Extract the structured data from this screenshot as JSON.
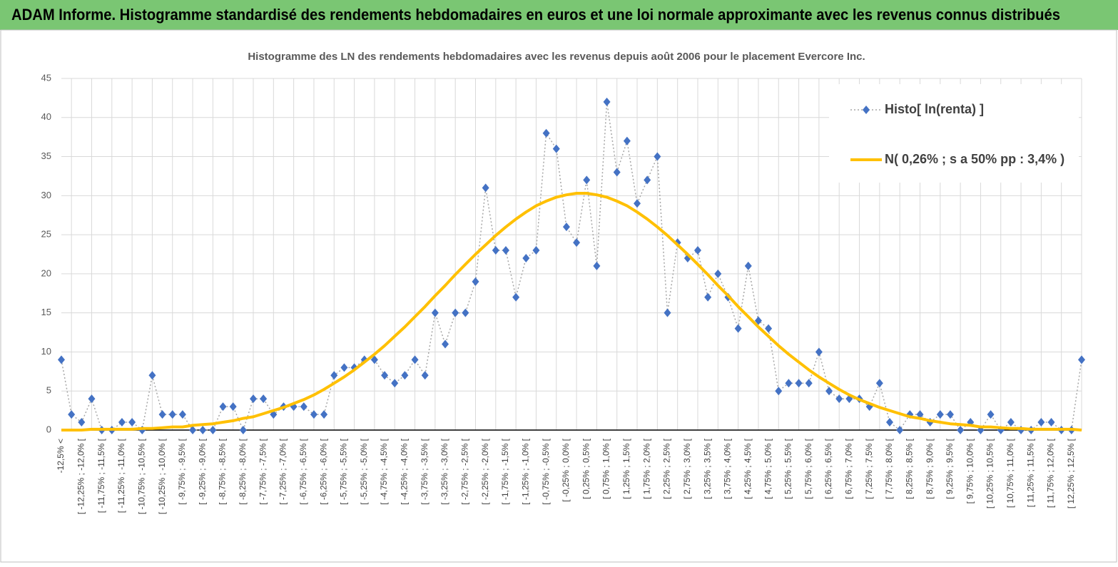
{
  "header": {
    "title": "ADAM Informe. Histogramme standardisé des rendements hebdomadaires en euros et une loi normale approximante avec les revenus connus distribués"
  },
  "chart_data": {
    "type": "line",
    "title": "Histogramme des LN des rendements hebdomadaires avec les revenus depuis août 2006 pour le placement Evercore Inc.",
    "categories": [
      "-12,5% <",
      null,
      "[ -12,25% ; -12,0% [",
      null,
      "[ -11,75% ; -11,5% [",
      null,
      "[ -11,25% ; -11,0% [",
      null,
      "[ -10,75% ; -10,5% [",
      null,
      "[ -10,25% ; -10,0% [",
      null,
      "[ -9,75% ; -9,5% [",
      null,
      "[ -9,25% ; -9,0% [",
      null,
      "[ -8,75% ; -8,5% [",
      null,
      "[ -8,25% ; -8,0% [",
      null,
      "[ -7,75% ; -7,5% [",
      null,
      "[ -7,25% ; -7,0% [",
      null,
      "[ -6,75% ; -6,5% [",
      null,
      "[ -6,25% ; -6,0% [",
      null,
      "[ -5,75% ; -5,5% [",
      null,
      "[ -5,25% ; -5,0% [",
      null,
      "[ -4,75% ; -4,5% [",
      null,
      "[ -4,25% ; -4,0% [",
      null,
      "[ -3,75% ; -3,5% [",
      null,
      "[ -3,25% ; -3,0% [",
      null,
      "[ -2,75% ; -2,5% [",
      null,
      "[ -2,25% ; -2,0% [",
      null,
      "[ -1,75% ; -1,5% [",
      null,
      "[ -1,25% ; -1,0% [",
      null,
      "[ -0,75% ; -0,5% [",
      null,
      "[ -0,25% ; 0,0% [",
      null,
      "[ 0,25% ; 0,5% [",
      null,
      "[ 0,75% ; 1,0% [",
      null,
      "[ 1,25% ; 1,5% [",
      null,
      "[ 1,75% ; 2,0% [",
      null,
      "[ 2,25% ; 2,5% [",
      null,
      "[ 2,75% ; 3,0% [",
      null,
      "[ 3,25% ; 3,5% [",
      null,
      "[ 3,75% ; 4,0% [",
      null,
      "[ 4,25% ; 4,5% [",
      null,
      "[ 4,75% ; 5,0% [",
      null,
      "[ 5,25% ; 5,5% [",
      null,
      "[ 5,75% ; 6,0% [",
      null,
      "[ 6,25% ; 6,5% [",
      null,
      "[ 6,75% ; 7,0% [",
      null,
      "[ 7,25% ; 7,5% [",
      null,
      "[ 7,75% ; 8,0% [",
      null,
      "[ 8,25% ; 8,5% [",
      null,
      "[ 8,75% ; 9,0% [",
      null,
      "[ 9,25% ; 9,5% [",
      null,
      "[ 9,75% ; 10,0% [",
      null,
      "[ 10,25% ; 10,5% [",
      null,
      "[ 10,75% ; 11,0% [",
      null,
      "[ 11,25% ; 11,5% [",
      null,
      "[ 11,75% ; 12,0% [",
      null,
      "[ 12,25% ; 12,5% [",
      null
    ],
    "series": [
      {
        "name": "Histo[ ln(renta) ]",
        "color": "#4472c4",
        "values": [
          9,
          2,
          1,
          4,
          0,
          0,
          1,
          1,
          0,
          7,
          2,
          2,
          2,
          0,
          0,
          0,
          3,
          3,
          0,
          4,
          4,
          2,
          3,
          3,
          3,
          2,
          2,
          7,
          8,
          8,
          9,
          9,
          7,
          6,
          7,
          9,
          7,
          15,
          11,
          15,
          15,
          19,
          31,
          23,
          23,
          17,
          22,
          23,
          38,
          36,
          26,
          24,
          32,
          21,
          42,
          33,
          37,
          29,
          32,
          35,
          15,
          24,
          22,
          23,
          17,
          20,
          17,
          13,
          21,
          14,
          13,
          5,
          6,
          6,
          6,
          10,
          5,
          4,
          4,
          4,
          3,
          6,
          1,
          0,
          2,
          2,
          1,
          2,
          2,
          0,
          1,
          0,
          2,
          0,
          1,
          0,
          0,
          1,
          1,
          0,
          0,
          9
        ]
      },
      {
        "name": "N( 0,26% ; s a 50% pp : 3,4% )",
        "color": "#ffc000",
        "values": [
          0,
          0,
          0,
          0.1,
          0.1,
          0.1,
          0.1,
          0.1,
          0.2,
          0.2,
          0.3,
          0.4,
          0.4,
          0.6,
          0.7,
          0.8,
          1.0,
          1.2,
          1.5,
          1.7,
          2.1,
          2.5,
          2.9,
          3.4,
          3.9,
          4.5,
          5.2,
          6.0,
          6.8,
          7.7,
          8.7,
          9.7,
          10.8,
          12.0,
          13.2,
          14.5,
          15.8,
          17.2,
          18.5,
          19.9,
          21.2,
          22.5,
          23.7,
          24.9,
          26.0,
          27.0,
          27.9,
          28.7,
          29.3,
          29.8,
          30.1,
          30.3,
          30.3,
          30.1,
          29.8,
          29.3,
          28.7,
          27.9,
          27.0,
          26.0,
          24.9,
          23.7,
          22.5,
          21.2,
          19.9,
          18.5,
          17.2,
          15.8,
          14.5,
          13.2,
          12.0,
          10.8,
          9.7,
          8.7,
          7.7,
          6.8,
          6.0,
          5.2,
          4.5,
          3.9,
          3.4,
          2.9,
          2.5,
          2.1,
          1.7,
          1.5,
          1.2,
          1.0,
          0.8,
          0.7,
          0.6,
          0.4,
          0.4,
          0.3,
          0.2,
          0.2,
          0.1,
          0.1,
          0.1,
          0.1,
          0.1,
          0
        ]
      }
    ],
    "ylim": [
      0,
      45
    ],
    "yticks": [
      0,
      5,
      10,
      15,
      20,
      25,
      30,
      35,
      40,
      45
    ],
    "grid": true,
    "legend": "upper right"
  }
}
